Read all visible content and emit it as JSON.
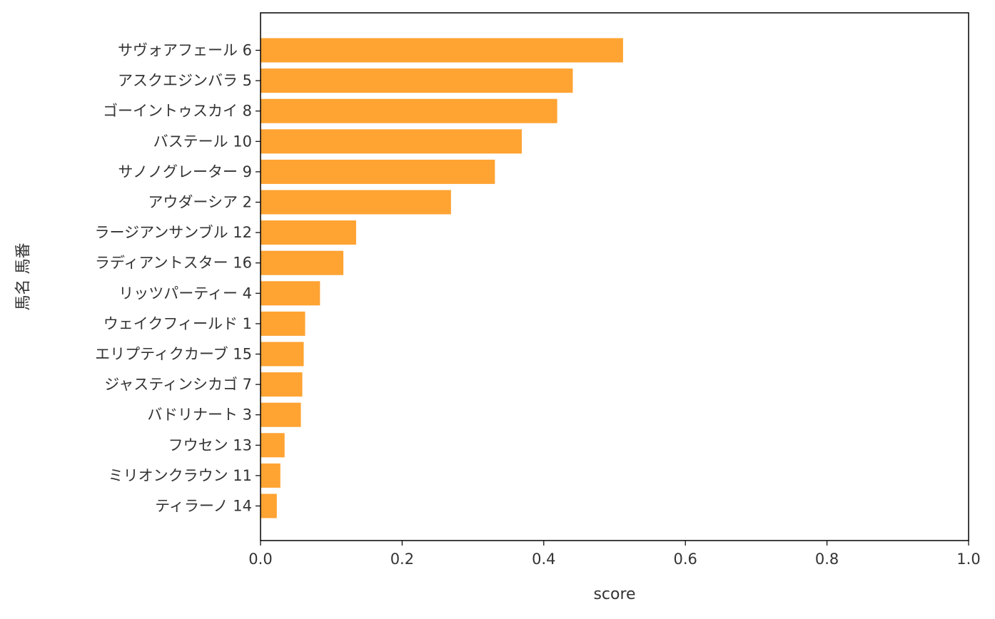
{
  "chart_data": {
    "type": "bar",
    "orientation": "horizontal",
    "categories": [
      "サヴォアフェール 6",
      "アスクエジンバラ 5",
      "ゴーイントゥスカイ 8",
      "バステール 10",
      "サノノグレーター 9",
      "アウダーシア 2",
      "ラージアンサンブル 12",
      "ラディアントスター 16",
      "リッツパーティー 4",
      "ウェイクフィールド 1",
      "エリプティクカーブ 15",
      "ジャスティンシカゴ 7",
      "バドリナート 3",
      "フウセン 13",
      "ミリオンクラウン 11",
      "ティラーノ 14"
    ],
    "values": [
      0.512,
      0.441,
      0.419,
      0.369,
      0.331,
      0.269,
      0.135,
      0.117,
      0.084,
      0.063,
      0.061,
      0.059,
      0.057,
      0.034,
      0.028,
      0.023
    ],
    "xlabel": "score",
    "ylabel": "馬名 馬番",
    "xlim": [
      0,
      1.0
    ],
    "xticks": [
      "0.0",
      "0.2",
      "0.4",
      "0.6",
      "0.8",
      "1.0"
    ],
    "bar_color": "#ffa332",
    "grid": false
  }
}
